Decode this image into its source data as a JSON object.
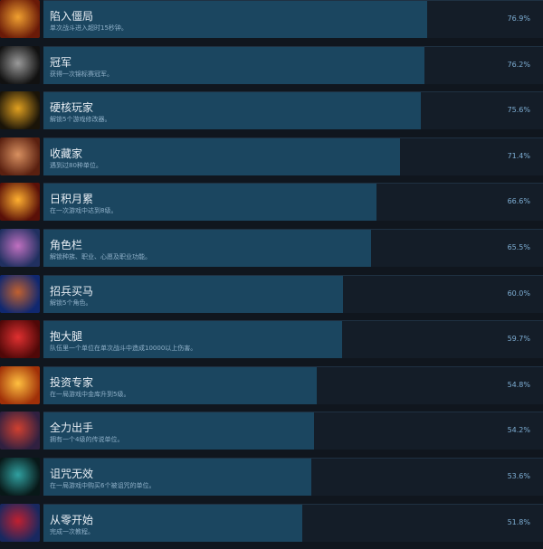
{
  "colors": {
    "fill": "#1b4660",
    "track": "#141d28",
    "background": "#10161e",
    "percent_text": "#7eaed4"
  },
  "achievements": [
    {
      "title": "陷入僵局",
      "desc": "单次战斗进入超时15秒钟。",
      "percent": "76.9%",
      "value": 76.9,
      "icon": "burning-clock-icon",
      "c1": "#f0a030",
      "c2": "#6a1a08"
    },
    {
      "title": "冠军",
      "desc": "获得一次锦标赛冠军。",
      "percent": "76.2%",
      "value": 76.2,
      "icon": "silver-key-icon",
      "c1": "#9a9a9a",
      "c2": "#111111"
    },
    {
      "title": "硬核玩家",
      "desc": "解锁5个游戏修改器。",
      "percent": "75.6%",
      "value": 75.6,
      "icon": "gold-key-icon",
      "c1": "#e0a020",
      "c2": "#1a1408"
    },
    {
      "title": "收藏家",
      "desc": "遇到过80种单位。",
      "percent": "71.4%",
      "value": 71.4,
      "icon": "creature-icon",
      "c1": "#d89060",
      "c2": "#5a2010"
    },
    {
      "title": "日积月累",
      "desc": "在一次游戏中达到8级。",
      "percent": "66.6%",
      "value": 66.6,
      "icon": "glowing-book-icon",
      "c1": "#ffb030",
      "c2": "#5a1008"
    },
    {
      "title": "角色栏",
      "desc": "解锁种族、职业、心愿及职业功能。",
      "percent": "65.5%",
      "value": 65.5,
      "icon": "character-portrait-icon",
      "c1": "#c070c0",
      "c2": "#203060"
    },
    {
      "title": "招兵买马",
      "desc": "解锁5个角色。",
      "percent": "60.0%",
      "value": 60.0,
      "icon": "beer-mug-icon",
      "c1": "#c06030",
      "c2": "#102870"
    },
    {
      "title": "抱大腿",
      "desc": "队伍里一个单位在单次战斗中造成10000以上伤害。",
      "percent": "59.7%",
      "value": 59.7,
      "icon": "red-cape-icon",
      "c1": "#e03030",
      "c2": "#500808"
    },
    {
      "title": "投资专家",
      "desc": "在一局游戏中金库升到5级。",
      "percent": "54.8%",
      "value": 54.8,
      "icon": "gold-pile-icon",
      "c1": "#ffc040",
      "c2": "#a03008"
    },
    {
      "title": "全力出手",
      "desc": "拥有一个4级的传说单位。",
      "percent": "54.2%",
      "value": 54.2,
      "icon": "armored-knight-icon",
      "c1": "#d04030",
      "c2": "#302040"
    },
    {
      "title": "诅咒无效",
      "desc": "在一局游戏中购买6个被诅咒的单位。",
      "percent": "53.6%",
      "value": 53.6,
      "icon": "cursed-skull-icon",
      "c1": "#30a0a0",
      "c2": "#081818"
    },
    {
      "title": "从零开始",
      "desc": "完成一次教程。",
      "percent": "51.8%",
      "value": 51.8,
      "icon": "red-tutorial-book-icon",
      "c1": "#c02030",
      "c2": "#182860"
    }
  ]
}
